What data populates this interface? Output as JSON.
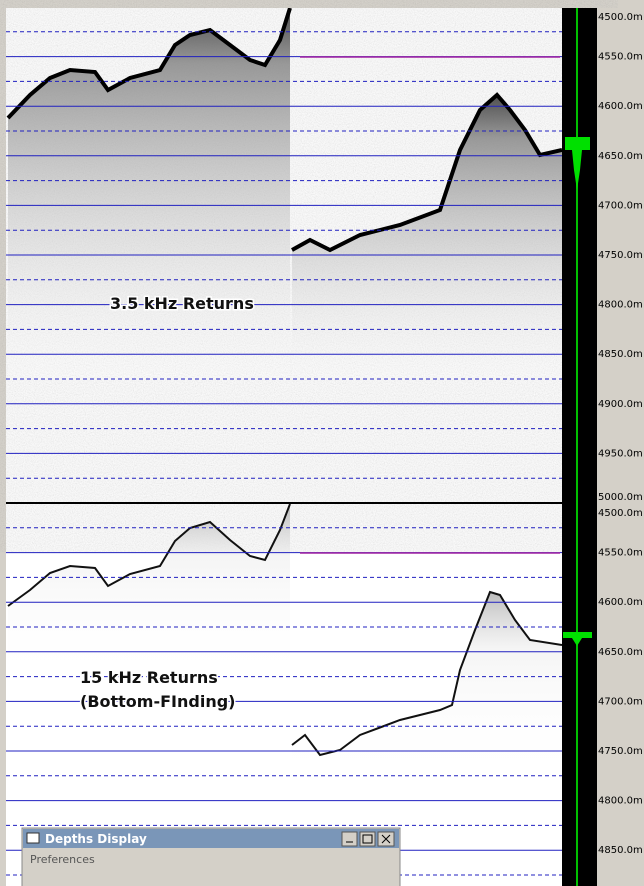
{
  "top_panel": {
    "label": "3.5 kHz Returns",
    "depth_labels": [
      "4500.0m",
      "4550.0m",
      "4600.0m",
      "4650.0m",
      "4700.0m",
      "4750.0m",
      "4800.0m",
      "4850.0m",
      "4900.0m",
      "4950.0m",
      "5000.0m"
    ]
  },
  "bottom_panel": {
    "label": "15 kHz Returns",
    "sublabel": "(Bottom-FInding)",
    "depth_labels": [
      "4500.0m",
      "4550.0m",
      "4600.0m",
      "4650.0m",
      "4700.0m",
      "4750.0m",
      "4800.0m",
      "4850.0m"
    ]
  },
  "window": {
    "title": "Depths Display",
    "menu": "Preferences"
  }
}
